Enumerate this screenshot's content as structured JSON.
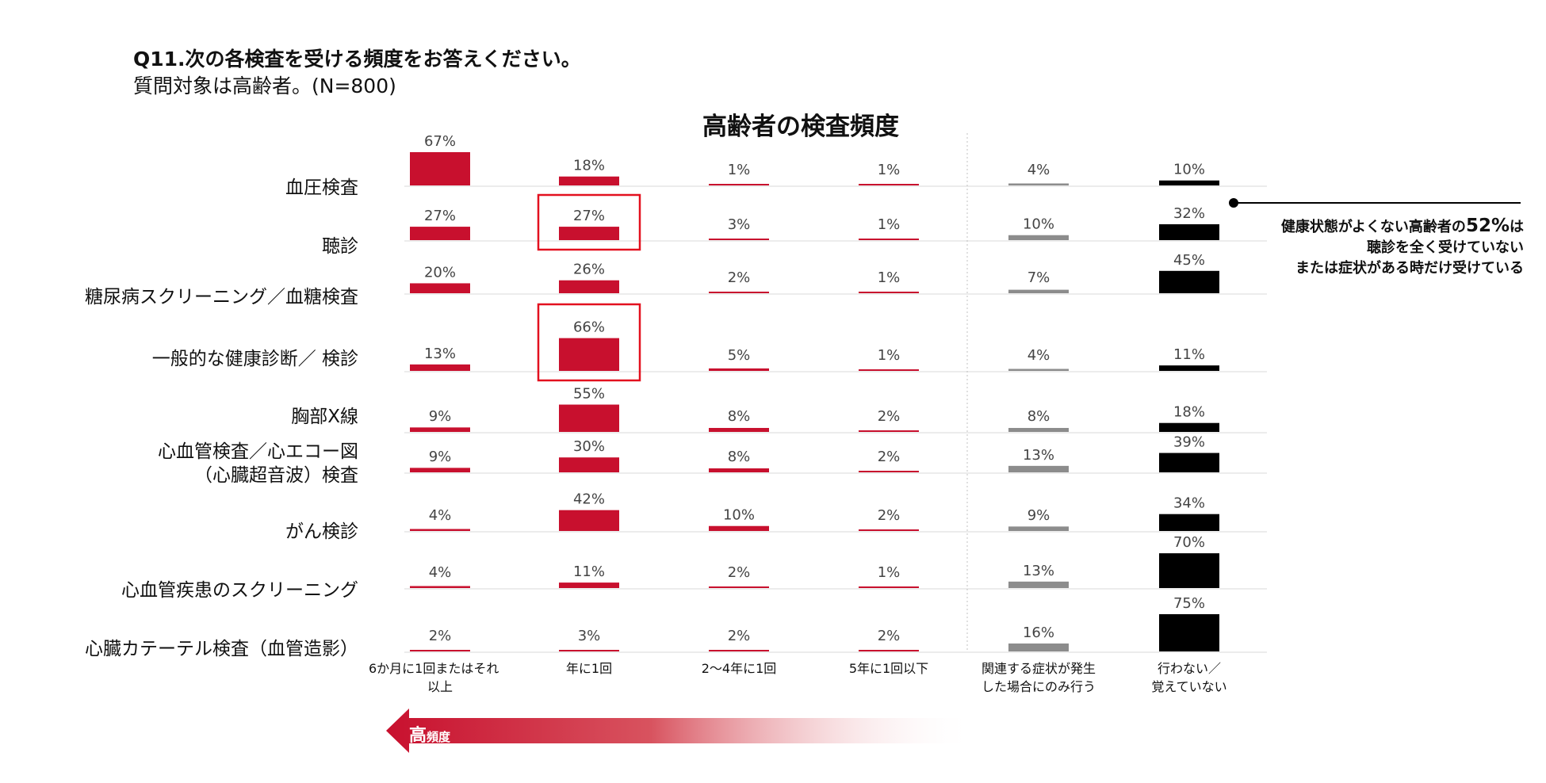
{
  "header": {
    "question": "Q11.次の各検査を受ける頻度をお答えください。",
    "subtitle": "質問対象は高齢者。(N=800)"
  },
  "callout": {
    "prefix": "健康状態がよくない高齢者の",
    "highlight": "52%",
    "suffix": "は",
    "line2": "聴診を全く受けていない",
    "line3": "または症状がある時だけ受けている"
  },
  "arrow": {
    "label_main": "高",
    "label_sub": "頻度"
  },
  "colors": {
    "red": "#c8102e",
    "gray": "#8c8c8c",
    "black": "#000000",
    "highlight_box": "#e3101f",
    "gridline": "#d9d9d9"
  },
  "chart_data": {
    "type": "bar",
    "title": "高齢者の検査頻度",
    "unit": "%",
    "rows": [
      "血圧検査",
      "聴診",
      "糖尿病スクリーニング／血糖検査",
      "一般的な健康診断／ 検診",
      "胸部X線",
      "心血管検査／心エコー図|（心臓超音波）検査",
      "がん検診",
      "心血管疾患のスクリーニング",
      "心臓カテーテル検査（血管造影）"
    ],
    "columns": [
      "6か月に1回またはそれ|以上",
      "年に1回",
      "2〜4年に1回",
      "5年に1回以下",
      "関連する症状が発生|した場合にのみ行う",
      "行わない／|覚えていない"
    ],
    "column_colors": [
      "red",
      "red",
      "red",
      "red",
      "gray",
      "black"
    ],
    "values": [
      [
        67,
        18,
        1,
        1,
        4,
        10
      ],
      [
        27,
        27,
        3,
        1,
        10,
        32
      ],
      [
        20,
        26,
        2,
        1,
        7,
        45
      ],
      [
        13,
        66,
        5,
        1,
        4,
        11
      ],
      [
        9,
        55,
        8,
        2,
        8,
        18
      ],
      [
        9,
        30,
        8,
        2,
        13,
        39
      ],
      [
        4,
        42,
        10,
        2,
        9,
        34
      ],
      [
        4,
        11,
        2,
        1,
        13,
        70
      ],
      [
        2,
        3,
        2,
        2,
        16,
        75
      ]
    ],
    "highlighted_cells": [
      [
        1,
        1
      ],
      [
        3,
        1
      ]
    ]
  }
}
